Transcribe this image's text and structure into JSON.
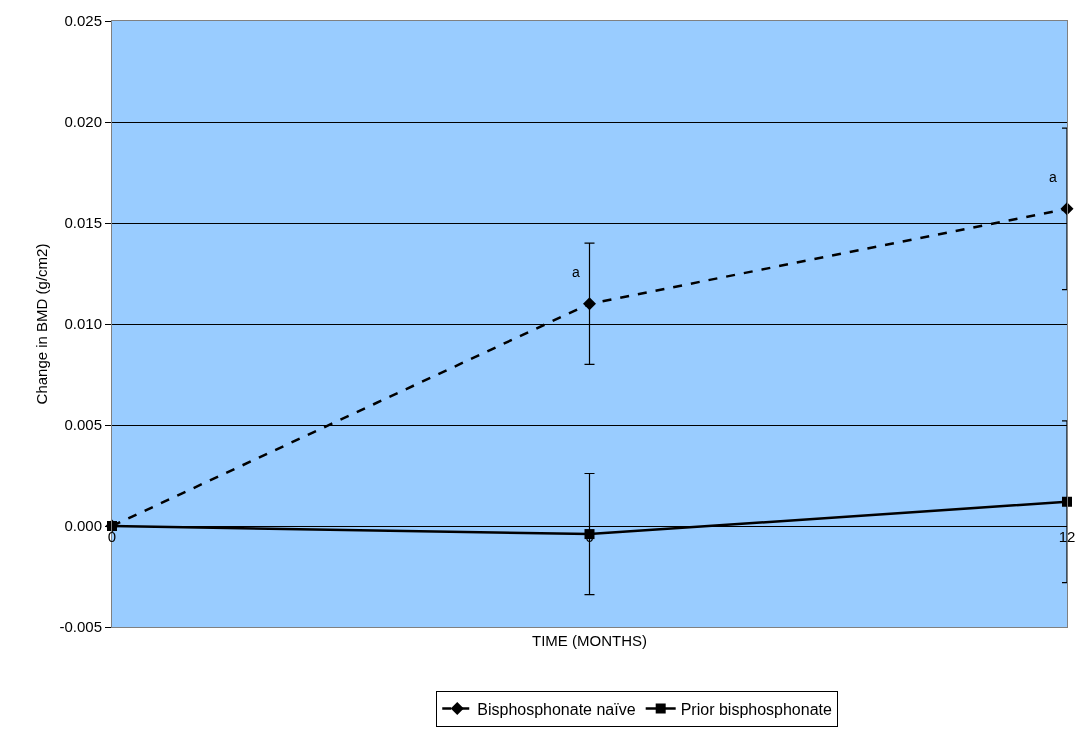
{
  "chart_data": {
    "type": "line",
    "xlabel": "TIME (MONTHS)",
    "ylabel": "Change in BMD (g/cm2)",
    "x": [
      0,
      6,
      12
    ],
    "series": [
      {
        "name": "Bisphosphonate naïve",
        "color": "#000000",
        "values": [
          0,
          0.011,
          0.0157
        ],
        "errors": [
          null,
          0.003,
          0.004
        ],
        "marker": "diamond",
        "line_style": "dashed"
      },
      {
        "name": "Prior bisphosphonate",
        "color": "#000000",
        "values": [
          0,
          -0.0004,
          0.0012
        ],
        "errors": [
          null,
          0.003,
          0.004
        ],
        "marker": "square",
        "line_style": "solid"
      }
    ],
    "annotations": [
      {
        "text": "a",
        "x": 6,
        "y": 0.011
      },
      {
        "text": "a",
        "x": 12,
        "y": 0.0157
      }
    ],
    "xlim": [
      0,
      12
    ],
    "xticks": [
      0,
      6,
      12
    ],
    "ylim": [
      -0.005,
      0.025
    ],
    "yticks": [
      {
        "value": -0.005,
        "label": "-0.005"
      },
      {
        "value": 0,
        "label": "0.000"
      },
      {
        "value": 0.005,
        "label": "0.005"
      },
      {
        "value": 0.01,
        "label": "0.010"
      },
      {
        "value": 0.015,
        "label": "0.015"
      },
      {
        "value": 0.02,
        "label": "0.020"
      },
      {
        "value": 0.025,
        "label": "0.025"
      }
    ],
    "grid": "y",
    "legend": "bottom"
  }
}
